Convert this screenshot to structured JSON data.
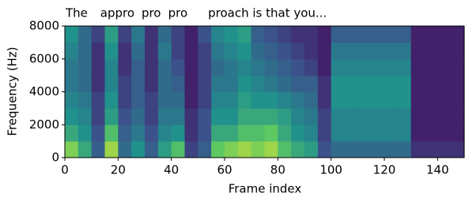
{
  "chart_data": {
    "type": "heatmap",
    "xlabel": "Frame index",
    "ylabel": "Frequency (Hz)",
    "xlim": [
      0,
      150
    ],
    "xticks": [
      0,
      20,
      40,
      60,
      80,
      100,
      120,
      140
    ],
    "ylim": [
      0,
      8000
    ],
    "yticks": [
      0,
      2000,
      4000,
      6000,
      8000
    ],
    "colormap": "viridis",
    "words": [
      {
        "text": "The",
        "frame": 0
      },
      {
        "text": "appro",
        "frame": 13
      },
      {
        "text": "pro",
        "frame": 28.5
      },
      {
        "text": "pro",
        "frame": 38.5
      },
      {
        "text": "proach is that you...",
        "frame": 53.5
      }
    ],
    "x_edges": [
      0,
      5,
      10,
      15,
      20,
      25,
      30,
      35,
      40,
      45,
      50,
      55,
      60,
      65,
      70,
      75,
      80,
      85,
      90,
      95,
      100,
      105,
      110,
      115,
      120,
      125,
      130,
      135,
      140,
      145,
      150
    ],
    "y_edges": [
      0,
      1000,
      2000,
      3000,
      4000,
      5000,
      6000,
      7000,
      8000
    ],
    "z": [
      [
        0.8,
        0.6,
        0.5,
        0.45,
        0.4,
        0.4,
        0.45,
        0.5
      ],
      [
        0.6,
        0.5,
        0.45,
        0.4,
        0.35,
        0.35,
        0.35,
        0.35
      ],
      [
        0.3,
        0.25,
        0.2,
        0.2,
        0.15,
        0.15,
        0.15,
        0.2
      ],
      [
        0.85,
        0.7,
        0.55,
        0.5,
        0.45,
        0.45,
        0.5,
        0.55
      ],
      [
        0.35,
        0.3,
        0.25,
        0.2,
        0.2,
        0.15,
        0.15,
        0.2
      ],
      [
        0.5,
        0.4,
        0.35,
        0.3,
        0.3,
        0.3,
        0.35,
        0.4
      ],
      [
        0.3,
        0.25,
        0.2,
        0.2,
        0.15,
        0.15,
        0.15,
        0.15
      ],
      [
        0.55,
        0.45,
        0.4,
        0.35,
        0.35,
        0.35,
        0.4,
        0.35
      ],
      [
        0.7,
        0.5,
        0.4,
        0.35,
        0.3,
        0.25,
        0.2,
        0.2
      ],
      [
        0.2,
        0.15,
        0.15,
        0.1,
        0.1,
        0.1,
        0.1,
        0.1
      ],
      [
        0.3,
        0.25,
        0.25,
        0.2,
        0.2,
        0.2,
        0.2,
        0.25
      ],
      [
        0.75,
        0.6,
        0.5,
        0.45,
        0.4,
        0.35,
        0.4,
        0.45
      ],
      [
        0.8,
        0.6,
        0.5,
        0.45,
        0.4,
        0.4,
        0.45,
        0.5
      ],
      [
        0.85,
        0.7,
        0.6,
        0.55,
        0.5,
        0.45,
        0.5,
        0.55
      ],
      [
        0.8,
        0.7,
        0.6,
        0.5,
        0.45,
        0.4,
        0.35,
        0.3
      ],
      [
        0.85,
        0.75,
        0.6,
        0.5,
        0.4,
        0.35,
        0.3,
        0.25
      ],
      [
        0.7,
        0.6,
        0.55,
        0.45,
        0.35,
        0.3,
        0.25,
        0.2
      ],
      [
        0.6,
        0.5,
        0.45,
        0.4,
        0.3,
        0.25,
        0.2,
        0.15
      ],
      [
        0.55,
        0.45,
        0.4,
        0.35,
        0.3,
        0.2,
        0.15,
        0.15
      ],
      [
        0.25,
        0.2,
        0.2,
        0.15,
        0.15,
        0.1,
        0.1,
        0.1
      ],
      [
        0.35,
        0.45,
        0.45,
        0.5,
        0.5,
        0.45,
        0.4,
        0.3
      ],
      [
        0.35,
        0.45,
        0.45,
        0.5,
        0.5,
        0.45,
        0.4,
        0.3
      ],
      [
        0.35,
        0.45,
        0.45,
        0.5,
        0.5,
        0.45,
        0.4,
        0.3
      ],
      [
        0.35,
        0.45,
        0.45,
        0.5,
        0.5,
        0.45,
        0.4,
        0.3
      ],
      [
        0.35,
        0.45,
        0.45,
        0.5,
        0.5,
        0.45,
        0.4,
        0.3
      ],
      [
        0.35,
        0.45,
        0.45,
        0.5,
        0.5,
        0.45,
        0.4,
        0.3
      ],
      [
        0.15,
        0.1,
        0.1,
        0.1,
        0.1,
        0.1,
        0.1,
        0.1
      ],
      [
        0.15,
        0.1,
        0.1,
        0.1,
        0.1,
        0.1,
        0.1,
        0.1
      ],
      [
        0.15,
        0.1,
        0.1,
        0.1,
        0.1,
        0.1,
        0.1,
        0.1
      ],
      [
        0.15,
        0.1,
        0.1,
        0.1,
        0.1,
        0.1,
        0.1,
        0.1
      ]
    ]
  }
}
